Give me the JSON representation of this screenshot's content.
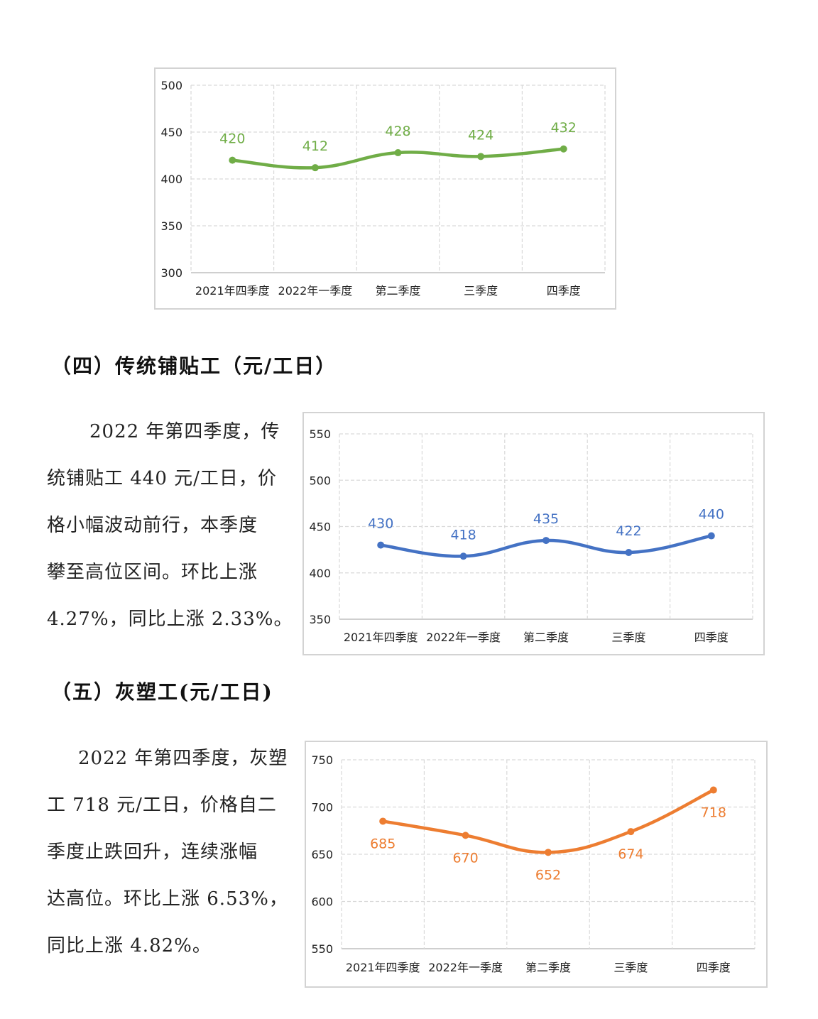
{
  "headings": {
    "section4": "（四）传统铺贴工（元/工日）",
    "section5": "（五）灰塑工(元/工日)"
  },
  "paragraphs": {
    "section4": [
      "2022 年第四季度，传",
      "统铺贴工 440 元/工日，价",
      "格小幅波动前行，本季度",
      "攀至高位区间。环比上涨",
      "4.27%，同比上涨 2.33%。"
    ],
    "section5": [
      "2022 年第四季度，灰塑",
      "工 718 元/工日，价格自二",
      "季度止跌回升，连续涨幅",
      "达高位。环比上涨 6.53%，",
      "同比上涨 4.82%。"
    ]
  },
  "chart_data": [
    {
      "type": "line",
      "categories": [
        "2021年四季度",
        "2022年一季度",
        "第二季度",
        "三季度",
        "四季度"
      ],
      "values": [
        420,
        412,
        428,
        424,
        432
      ],
      "ylim": [
        300,
        500
      ],
      "yticks": [
        300,
        350,
        400,
        450,
        500
      ],
      "color": "#70ad47",
      "label_position": "above",
      "grid": true
    },
    {
      "type": "line",
      "categories": [
        "2021年四季度",
        "2022年一季度",
        "第二季度",
        "三季度",
        "四季度"
      ],
      "values": [
        430,
        418,
        435,
        422,
        440
      ],
      "ylim": [
        350,
        550
      ],
      "yticks": [
        350,
        400,
        450,
        500,
        550
      ],
      "color": "#4472c4",
      "label_position": "above",
      "grid": true
    },
    {
      "type": "line",
      "categories": [
        "2021年四季度",
        "2022年一季度",
        "第二季度",
        "三季度",
        "四季度"
      ],
      "values": [
        685,
        670,
        652,
        674,
        718
      ],
      "ylim": [
        550,
        750
      ],
      "yticks": [
        550,
        600,
        650,
        700,
        750
      ],
      "color": "#ed7d31",
      "label_position": "below",
      "grid": true
    }
  ]
}
